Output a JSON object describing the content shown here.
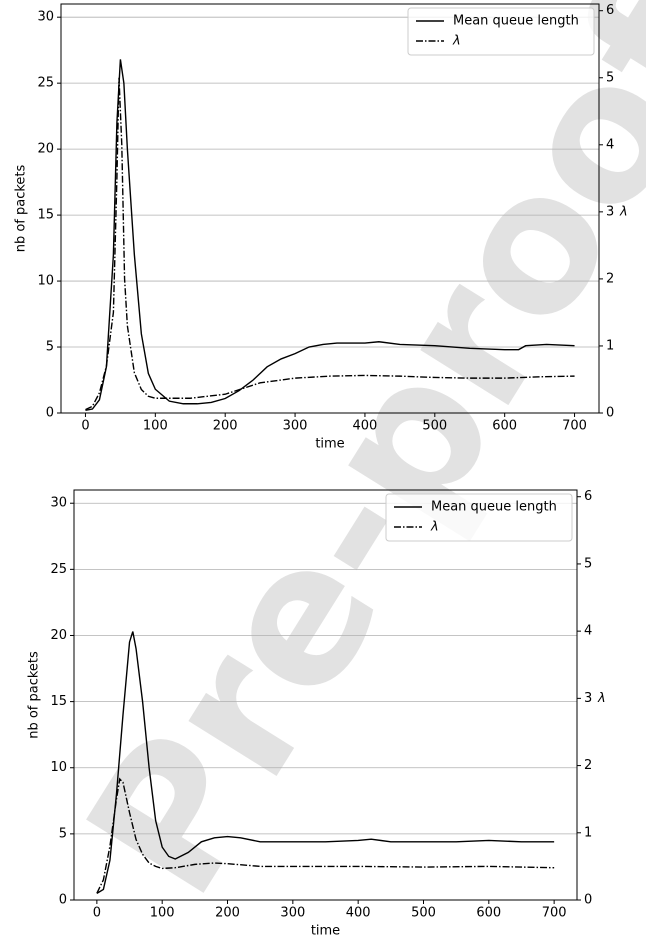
{
  "watermark": "Pre-proof",
  "chart_data": [
    {
      "type": "line",
      "xlabel": "time",
      "ylabel": "nb of packets",
      "y2label": "λ",
      "xlim": [
        -35,
        735
      ],
      "ylim": [
        0,
        31
      ],
      "y2lim": [
        0,
        6.1
      ],
      "xticks": [
        0,
        100,
        200,
        300,
        400,
        500,
        600,
        700
      ],
      "yticks": [
        0,
        5,
        10,
        15,
        20,
        25,
        30
      ],
      "y2ticks": [
        0,
        1,
        2,
        3,
        4,
        5,
        6
      ],
      "grid": "y",
      "legend": "upper right",
      "series": [
        {
          "name": "Mean queue length",
          "color": "#000000",
          "linestyle": "solid",
          "x": [
            0,
            10,
            20,
            30,
            40,
            45,
            50,
            55,
            60,
            70,
            80,
            90,
            100,
            120,
            140,
            160,
            180,
            200,
            220,
            240,
            260,
            280,
            300,
            320,
            340,
            360,
            400,
            420,
            450,
            500,
            550,
            600,
            620,
            630,
            660,
            700
          ],
          "values": [
            0.2,
            0.3,
            1,
            3.5,
            12,
            22,
            26.8,
            25,
            20,
            12,
            6,
            3,
            1.8,
            0.9,
            0.7,
            0.7,
            0.8,
            1.1,
            1.7,
            2.5,
            3.5,
            4.1,
            4.5,
            5,
            5.2,
            5.3,
            5.3,
            5.4,
            5.2,
            5.1,
            4.9,
            4.8,
            4.8,
            5.1,
            5.2,
            5.1
          ]
        },
        {
          "name": "λ",
          "color": "#000000",
          "linestyle": "dashdot",
          "axis": "y2",
          "x": [
            0,
            10,
            20,
            30,
            40,
            45,
            48,
            52,
            56,
            60,
            70,
            80,
            90,
            100,
            150,
            200,
            250,
            300,
            350,
            400,
            450,
            500,
            550,
            600,
            650,
            700
          ],
          "values": [
            0.05,
            0.1,
            0.3,
            0.7,
            1.5,
            3.5,
            5.0,
            4,
            2,
            1.3,
            0.6,
            0.35,
            0.25,
            0.22,
            0.22,
            0.28,
            0.45,
            0.52,
            0.55,
            0.56,
            0.55,
            0.53,
            0.52,
            0.52,
            0.54,
            0.55
          ]
        }
      ]
    },
    {
      "type": "line",
      "xlabel": "time",
      "ylabel": "nb of packets",
      "y2label": "λ",
      "xlim": [
        -35,
        735
      ],
      "ylim": [
        0,
        31
      ],
      "y2lim": [
        0,
        6.1
      ],
      "xticks": [
        0,
        100,
        200,
        300,
        400,
        500,
        600,
        700
      ],
      "yticks": [
        0,
        5,
        10,
        15,
        20,
        25,
        30
      ],
      "y2ticks": [
        0,
        1,
        2,
        3,
        4,
        5,
        6
      ],
      "grid": "y",
      "legend": "upper right",
      "series": [
        {
          "name": "Mean queue length",
          "color": "#000000",
          "linestyle": "solid",
          "x": [
            0,
            10,
            20,
            30,
            40,
            50,
            55,
            60,
            70,
            80,
            90,
            100,
            110,
            120,
            140,
            160,
            180,
            200,
            220,
            250,
            300,
            350,
            400,
            420,
            450,
            500,
            550,
            600,
            650,
            700
          ],
          "values": [
            0.5,
            0.8,
            3,
            8,
            14,
            19.5,
            20.3,
            19,
            15,
            10,
            6,
            4,
            3.3,
            3.1,
            3.6,
            4.4,
            4.7,
            4.8,
            4.7,
            4.4,
            4.4,
            4.4,
            4.5,
            4.6,
            4.4,
            4.4,
            4.4,
            4.5,
            4.4,
            4.4
          ]
        },
        {
          "name": "λ",
          "color": "#000000",
          "linestyle": "dashdot",
          "axis": "y2",
          "x": [
            0,
            10,
            20,
            30,
            35,
            40,
            50,
            60,
            70,
            80,
            90,
            100,
            120,
            150,
            180,
            200,
            250,
            300,
            400,
            500,
            600,
            700
          ],
          "values": [
            0.1,
            0.3,
            0.8,
            1.5,
            1.8,
            1.75,
            1.3,
            0.9,
            0.68,
            0.55,
            0.5,
            0.47,
            0.48,
            0.53,
            0.55,
            0.54,
            0.5,
            0.5,
            0.5,
            0.49,
            0.5,
            0.48
          ]
        }
      ]
    }
  ]
}
